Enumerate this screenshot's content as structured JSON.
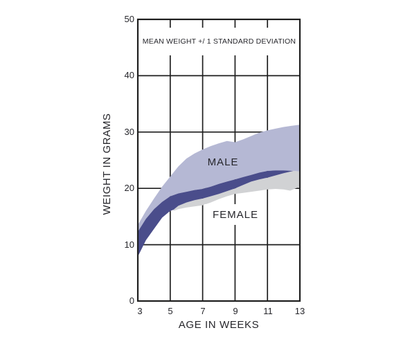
{
  "figure": {
    "title": "MEAN WEIGHT +/ 1 STANDARD DEVIATION",
    "y_axis": {
      "label": "WEIGHT IN GRAMS",
      "ticks": [
        "50",
        "40",
        "30",
        "20",
        "10",
        "0"
      ]
    },
    "x_axis": {
      "label": "AGE IN WEEKS",
      "ticks": [
        "3",
        "5",
        "7",
        "9",
        "11",
        "13"
      ]
    },
    "band_labels": {
      "male": "MALE",
      "female": "FEMALE"
    },
    "colors": {
      "male_band": "#b5b8d4",
      "female_band": "#d1d2d4",
      "overlap_band": "#4a4d8b",
      "grid": "#1e1e1e",
      "text": "#26262b",
      "background": "#ffffff"
    }
  },
  "chart_data": {
    "type": "area",
    "title": "MEAN WEIGHT +/ 1 STANDARD DEVIATION",
    "xlabel": "AGE IN WEEKS",
    "ylabel": "WEIGHT IN GRAMS",
    "xlim": [
      3,
      13
    ],
    "ylim": [
      0,
      50
    ],
    "x_ticks": [
      3,
      5,
      7,
      9,
      11,
      13
    ],
    "y_ticks": [
      0,
      10,
      20,
      30,
      40,
      50
    ],
    "grid": true,
    "legend_position": "none",
    "series": [
      {
        "name": "male_mean_plus_1sd",
        "points": [
          [
            3,
            13.5
          ],
          [
            3.5,
            16.0
          ],
          [
            4,
            18.2
          ],
          [
            4.5,
            20.3
          ],
          [
            5,
            22.1
          ],
          [
            5.5,
            23.9
          ],
          [
            6,
            25.3
          ],
          [
            6.5,
            26.2
          ],
          [
            7,
            26.9
          ],
          [
            7.5,
            27.5
          ],
          [
            8,
            28.0
          ],
          [
            8.5,
            28.4
          ],
          [
            9,
            28.2
          ],
          [
            9.5,
            28.7
          ],
          [
            10,
            29.3
          ],
          [
            10.5,
            29.9
          ],
          [
            11,
            30.3
          ],
          [
            11.5,
            30.6
          ],
          [
            12,
            30.9
          ],
          [
            12.5,
            31.1
          ],
          [
            13,
            31.3
          ]
        ]
      },
      {
        "name": "male_mean_minus_1sd",
        "points": [
          [
            3,
            12.3
          ],
          [
            3.5,
            14.6
          ],
          [
            4,
            16.3
          ],
          [
            4.5,
            17.6
          ],
          [
            5,
            18.6
          ],
          [
            5.5,
            19.1
          ],
          [
            6,
            19.4
          ],
          [
            6.5,
            19.7
          ],
          [
            7,
            19.9
          ],
          [
            7.5,
            20.3
          ],
          [
            8,
            20.8
          ],
          [
            8.5,
            21.2
          ],
          [
            9,
            21.6
          ],
          [
            9.5,
            22.0
          ],
          [
            10,
            22.4
          ],
          [
            10.5,
            22.8
          ],
          [
            11,
            23.1
          ],
          [
            11.5,
            23.2
          ],
          [
            12,
            23.2
          ],
          [
            12.6,
            23.1
          ],
          [
            13,
            23.0
          ]
        ]
      },
      {
        "name": "female_mean_plus_1sd",
        "points": [
          [
            3,
            7.9
          ],
          [
            3.5,
            10.8
          ],
          [
            4,
            12.8
          ],
          [
            4.5,
            14.8
          ],
          [
            5,
            16.0
          ],
          [
            5.2,
            16.2
          ],
          [
            5.5,
            16.9
          ],
          [
            6,
            17.5
          ],
          [
            6.5,
            17.9
          ],
          [
            7,
            18.2
          ],
          [
            7.5,
            18.6
          ],
          [
            8,
            19.0
          ],
          [
            8.5,
            19.5
          ],
          [
            9,
            20.0
          ],
          [
            9.5,
            20.6
          ],
          [
            10,
            21.2
          ],
          [
            10.5,
            21.6
          ],
          [
            11,
            21.9
          ],
          [
            11.5,
            22.3
          ],
          [
            12,
            22.7
          ],
          [
            12.6,
            23.1
          ],
          [
            13,
            23.0
          ]
        ]
      },
      {
        "name": "female_mean_minus_1sd",
        "points": [
          [
            5.2,
            16.0
          ],
          [
            5.5,
            16.3
          ],
          [
            6,
            16.6
          ],
          [
            6.5,
            16.8
          ],
          [
            7,
            17.0
          ],
          [
            7.5,
            17.5
          ],
          [
            8,
            18.1
          ],
          [
            8.5,
            18.6
          ],
          [
            9,
            19.0
          ],
          [
            9.5,
            19.2
          ],
          [
            10,
            19.4
          ],
          [
            10.5,
            19.6
          ],
          [
            11,
            19.8
          ],
          [
            11.5,
            19.9
          ],
          [
            12,
            19.8
          ],
          [
            12.4,
            19.6
          ],
          [
            13,
            20.3
          ]
        ]
      }
    ],
    "regions": [
      {
        "band": "female",
        "fill": "female_band",
        "upper": "female_mean_plus_1sd",
        "lower": "female_mean_minus_1sd",
        "from": 5.2
      },
      {
        "band": "male",
        "fill": "male_band",
        "upper": "male_mean_plus_1sd",
        "lower": "male_mean_minus_1sd"
      },
      {
        "band": "overlap",
        "fill": "overlap_band",
        "upper": "male_mean_minus_1sd",
        "lower": "female_mean_plus_1sd"
      }
    ],
    "annotations": [
      {
        "text": "MALE",
        "x": 8.3,
        "y": 24.7
      },
      {
        "text": "FEMALE",
        "x": 9.0,
        "y": 15.4
      }
    ]
  }
}
